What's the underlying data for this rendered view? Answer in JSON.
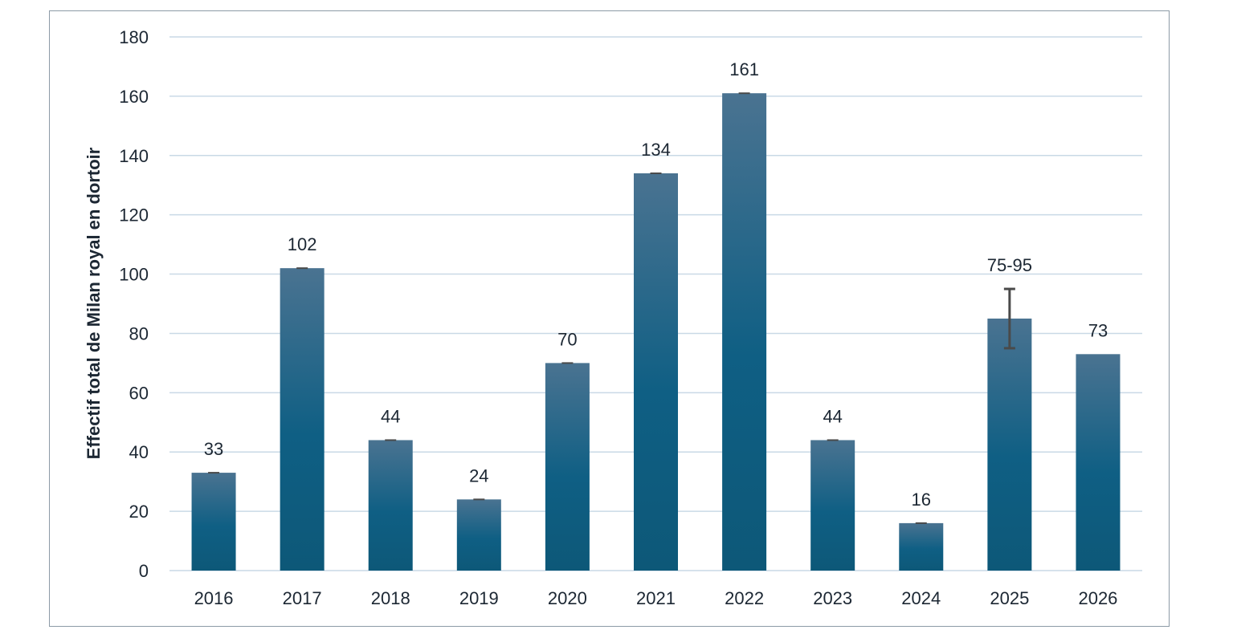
{
  "chart_data": {
    "type": "bar",
    "title": "",
    "xlabel": "",
    "ylabel": "Effectif total de Milan royal en dortoir",
    "categories": [
      "2016",
      "2017",
      "2018",
      "2019",
      "2020",
      "2021",
      "2022",
      "2023",
      "2024",
      "2025",
      "2026"
    ],
    "values": [
      33,
      102,
      44,
      24,
      70,
      134,
      161,
      44,
      16,
      85,
      73
    ],
    "data_labels": [
      "33",
      "102",
      "44",
      "24",
      "70",
      "134",
      "161",
      "44",
      "16",
      "75-95",
      "73"
    ],
    "error_bars": [
      {
        "low": 33,
        "high": 33
      },
      {
        "low": 102,
        "high": 102
      },
      {
        "low": 44,
        "high": 44
      },
      {
        "low": 24,
        "high": 24
      },
      {
        "low": 70,
        "high": 70
      },
      {
        "low": 134,
        "high": 134
      },
      {
        "low": 161,
        "high": 161
      },
      {
        "low": 44,
        "high": 44
      },
      {
        "low": 16,
        "high": 16
      },
      {
        "low": 75,
        "high": 95
      },
      null
    ],
    "ylim": [
      0,
      180
    ],
    "yticks": [
      0,
      20,
      40,
      60,
      80,
      100,
      120,
      140,
      160,
      180
    ],
    "ytick_labels": [
      "0",
      "20",
      "40",
      "60",
      "80",
      "100",
      "120",
      "140",
      "160",
      "180"
    ],
    "grid": true,
    "legend": "none",
    "colors": {
      "bar_top": "#4a7391",
      "bar_mid": "#0f5f84",
      "bar_bottom": "#0d5878",
      "grid": "#c9d9e6",
      "error_bar": "#4a4a4a",
      "text": "#1c2733",
      "frame": "#8c9aa6"
    }
  }
}
